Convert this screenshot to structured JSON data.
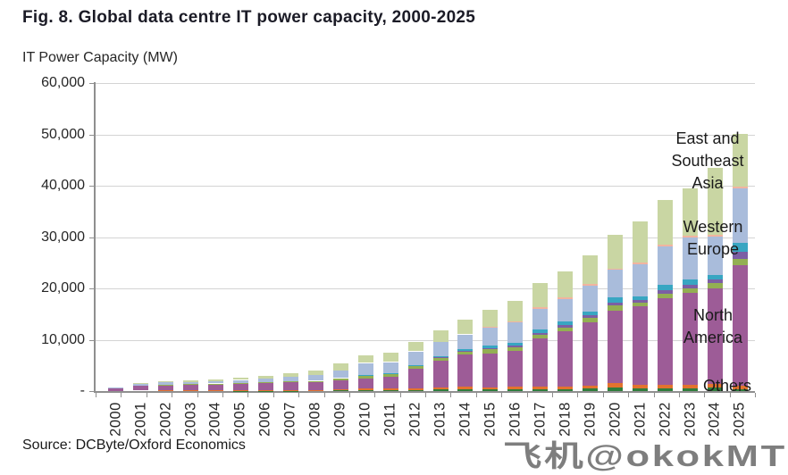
{
  "title": "Fig. 8. Global data centre IT power capacity, 2000-2025",
  "y_axis_title": "IT Power Capacity (MW)",
  "source": "Source: DCByte/Oxford Economics",
  "watermark": "飞机@okokMT",
  "annotations": {
    "east_southeast_asia": {
      "lines": [
        "East and",
        "Southeast",
        "Asia"
      ]
    },
    "western_europe": {
      "lines": [
        "Western",
        "Europe"
      ]
    },
    "north_america": {
      "lines": [
        "North",
        "America"
      ]
    },
    "others": {
      "lines": [
        "Others"
      ]
    }
  },
  "chart_data": {
    "type": "bar",
    "stacked": true,
    "title": "Fig. 8. Global data centre IT power capacity, 2000-2025",
    "ylabel": "IT Power Capacity (MW)",
    "unit": "MW",
    "ylim": [
      0,
      60000
    ],
    "y_tick_interval": 10000,
    "y_tick_labels": [
      "-",
      "10,000",
      "20,000",
      "30,000",
      "40,000",
      "50,000",
      "60,000"
    ],
    "grid": "horizontal",
    "legend_position": "labels-inside-plot",
    "categories": [
      "2000",
      "2001",
      "2002",
      "2003",
      "2004",
      "2005",
      "2006",
      "2007",
      "2008",
      "2009",
      "2010",
      "2011",
      "2012",
      "2013",
      "2014",
      "2015",
      "2016",
      "2017",
      "2018",
      "2019",
      "2020",
      "2021",
      "2022",
      "2023",
      "2024",
      "2025"
    ],
    "series": [
      {
        "name": "Others (dark green)",
        "color": "#2F7D3B",
        "values": [
          20,
          40,
          50,
          50,
          50,
          70,
          80,
          80,
          50,
          120,
          150,
          200,
          220,
          300,
          360,
          350,
          420,
          350,
          400,
          500,
          700,
          600,
          600,
          600,
          650,
          400
        ]
      },
      {
        "name": "Others (orange)",
        "color": "#E2732E",
        "values": [
          30,
          60,
          70,
          80,
          80,
          90,
          100,
          90,
          80,
          280,
          300,
          350,
          300,
          400,
          450,
          420,
          500,
          450,
          500,
          550,
          800,
          650,
          700,
          700,
          750,
          700
        ]
      },
      {
        "name": "North America",
        "color": "#9D5C97",
        "values": [
          520,
          950,
          1100,
          1160,
          1250,
          1330,
          1430,
          1540,
          1600,
          1650,
          2050,
          2250,
          3880,
          5250,
          6380,
          6600,
          6840,
          9500,
          10700,
          12320,
          14100,
          15200,
          16870,
          17760,
          18600,
          23500
        ]
      },
      {
        "name": "unlabeled (olive green)",
        "color": "#93AF53",
        "values": [
          30,
          60,
          70,
          80,
          90,
          100,
          120,
          180,
          250,
          400,
          550,
          550,
          430,
          500,
          540,
          750,
          750,
          700,
          810,
          870,
          1100,
          750,
          810,
          900,
          1000,
          1150
        ]
      },
      {
        "name": "unlabeled (violet)",
        "color": "#7C5FA4",
        "values": [
          0,
          0,
          0,
          0,
          10,
          10,
          10,
          20,
          20,
          30,
          30,
          30,
          30,
          80,
          100,
          150,
          290,
          350,
          460,
          460,
          600,
          580,
          640,
          700,
          700,
          1450
        ]
      },
      {
        "name": "unlabeled (teal)",
        "color": "#38A6C2",
        "values": [
          0,
          0,
          10,
          10,
          20,
          40,
          50,
          60,
          60,
          60,
          80,
          100,
          150,
          250,
          300,
          550,
          580,
          580,
          700,
          810,
          1000,
          700,
          990,
          1000,
          870,
          1750
        ]
      },
      {
        "name": "Western Europe",
        "color": "#A9BCDB",
        "values": [
          150,
          300,
          360,
          410,
          460,
          530,
          660,
          870,
          1100,
          1500,
          2300,
          2160,
          2730,
          2720,
          2900,
          3600,
          3940,
          4000,
          4290,
          5040,
          5300,
          6200,
          7480,
          8230,
          7440,
          10550
        ]
      },
      {
        "name": "unlabeled (salmon)",
        "color": "#F1B49F",
        "values": [
          0,
          0,
          0,
          0,
          0,
          10,
          10,
          20,
          20,
          30,
          40,
          40,
          40,
          40,
          50,
          100,
          230,
          350,
          350,
          350,
          300,
          350,
          350,
          350,
          350,
          350
        ]
      },
      {
        "name": "East and Southeast Asia",
        "color": "#C9D6A3",
        "values": [
          50,
          140,
          190,
          240,
          290,
          370,
          500,
          680,
          820,
          1380,
          1500,
          1800,
          1840,
          2300,
          2780,
          3380,
          3950,
          4820,
          5040,
          5500,
          6500,
          7970,
          8760,
          9160,
          13140,
          10250
        ]
      }
    ]
  }
}
